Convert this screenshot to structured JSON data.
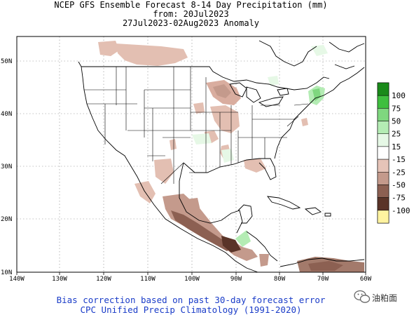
{
  "title": {
    "line1": "NCEP GFS Ensemble Forecast 8-14 Day Precipitation (mm)",
    "line2": "from: 20Jul2023",
    "line3": "27Jul2023-02Aug2023 Anomaly"
  },
  "footer": {
    "line1": "Bias correction based on past 30-day forecast error",
    "line2": "CPC Unified Precip Climatology (1991-2020)"
  },
  "axes": {
    "x_labels": [
      "140W",
      "130W",
      "120W",
      "110W",
      "100W",
      "90W",
      "80W",
      "70W",
      "60W"
    ],
    "y_labels": [
      "10N",
      "20N",
      "30N",
      "40N",
      "50N"
    ]
  },
  "legend": {
    "labels": [
      "100",
      "75",
      "50",
      "25",
      "15",
      "-15",
      "-25",
      "-50",
      "-75",
      "-100"
    ],
    "colors": [
      "#1a8a1a",
      "#3fbf3f",
      "#7fd77f",
      "#b4ecb4",
      "#e6f8e6",
      "#ffffff",
      "#e6c4b8",
      "#c49a8c",
      "#8c6052",
      "#5a3428",
      "#fff3a0"
    ]
  },
  "watermark": {
    "text": "油粕面",
    "icon": "wechat-icon"
  }
}
